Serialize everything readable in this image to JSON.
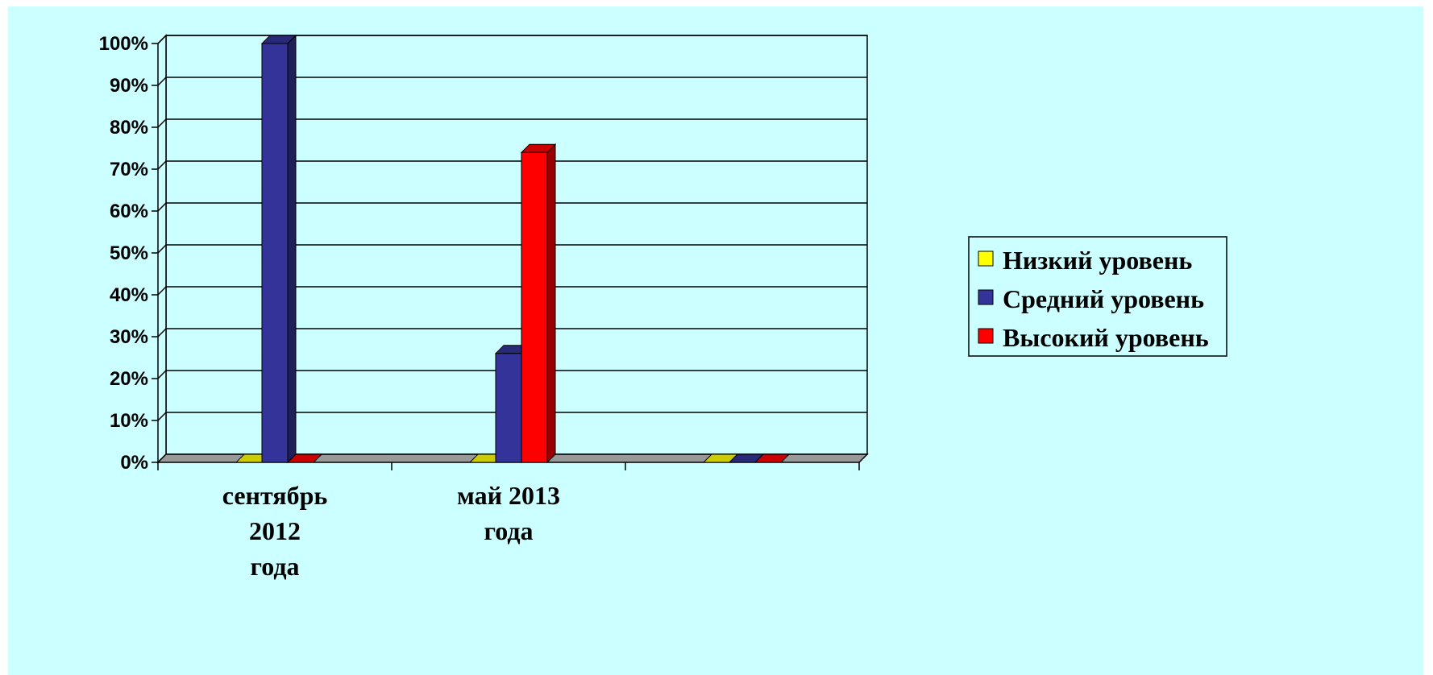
{
  "chart_data": {
    "type": "bar",
    "categories": [
      [
        "сентябрь",
        "2012",
        "года"
      ],
      [
        "май 2013",
        "года"
      ],
      [
        ""
      ]
    ],
    "series": [
      {
        "name": "Низкий уровень",
        "values": [
          0,
          0,
          0
        ],
        "color": "#ffff00"
      },
      {
        "name": "Средний уровень",
        "values": [
          100,
          26,
          0
        ],
        "color": "#333399"
      },
      {
        "name": "Высокий уровень",
        "values": [
          0,
          74,
          0
        ],
        "color": "#ff0000"
      }
    ],
    "y_ticks": [
      "0%",
      "10%",
      "20%",
      "30%",
      "40%",
      "50%",
      "60%",
      "70%",
      "80%",
      "90%",
      "100%"
    ],
    "ylim": [
      0,
      100
    ],
    "grid": true,
    "legend_position": "right",
    "three_d": true
  }
}
